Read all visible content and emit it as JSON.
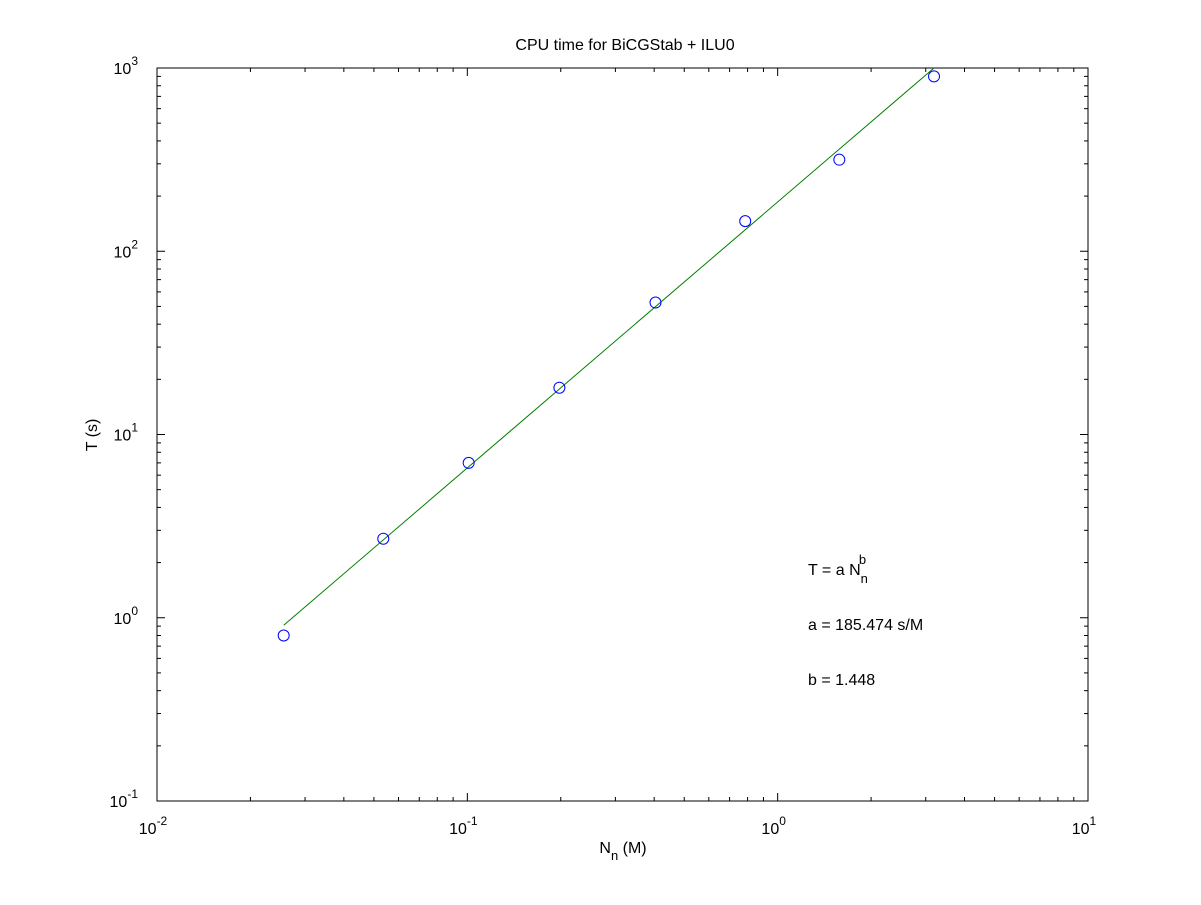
{
  "chart_data": {
    "type": "scatter",
    "title": "CPU time for BiCGStab + ILU0",
    "xlabel": {
      "main": "N",
      "sub": "n",
      "unit": " (M)"
    },
    "ylabel": "T (s)",
    "xscale": "log",
    "yscale": "log",
    "xlim": [
      0.01,
      10
    ],
    "ylim": [
      0.1,
      1000
    ],
    "grid": false,
    "box": true,
    "x_ticks": [
      {
        "base": "10",
        "exp": "-2",
        "value": 0.01
      },
      {
        "base": "10",
        "exp": "-1",
        "value": 0.1
      },
      {
        "base": "10",
        "exp": "0",
        "value": 1
      },
      {
        "base": "10",
        "exp": "1",
        "value": 10
      }
    ],
    "y_ticks": [
      {
        "base": "10",
        "exp": "-1",
        "value": 0.1
      },
      {
        "base": "10",
        "exp": "0",
        "value": 1
      },
      {
        "base": "10",
        "exp": "1",
        "value": 10
      },
      {
        "base": "10",
        "exp": "2",
        "value": 100
      },
      {
        "base": "10",
        "exp": "3",
        "value": 1000
      }
    ],
    "series": [
      {
        "kind": "markers",
        "marker": "circle-open",
        "color": "#0000ff",
        "x": [
          0.0256,
          0.0536,
          0.101,
          0.198,
          0.404,
          0.786,
          1.58,
          3.19
        ],
        "y": [
          0.8,
          2.7,
          7.0,
          18.0,
          52.5,
          146.0,
          316.0,
          900.0
        ]
      },
      {
        "kind": "fit-line",
        "color": "#008000",
        "x": [
          0.0256,
          3.19
        ],
        "y": [
          0.91,
          1000.0
        ]
      }
    ],
    "annotations": {
      "formula": {
        "main": "T = a N",
        "sub": "n",
        "sup": "b"
      },
      "a_line": "a = 185.474 s/M",
      "b_line": "b = 1.448"
    }
  }
}
